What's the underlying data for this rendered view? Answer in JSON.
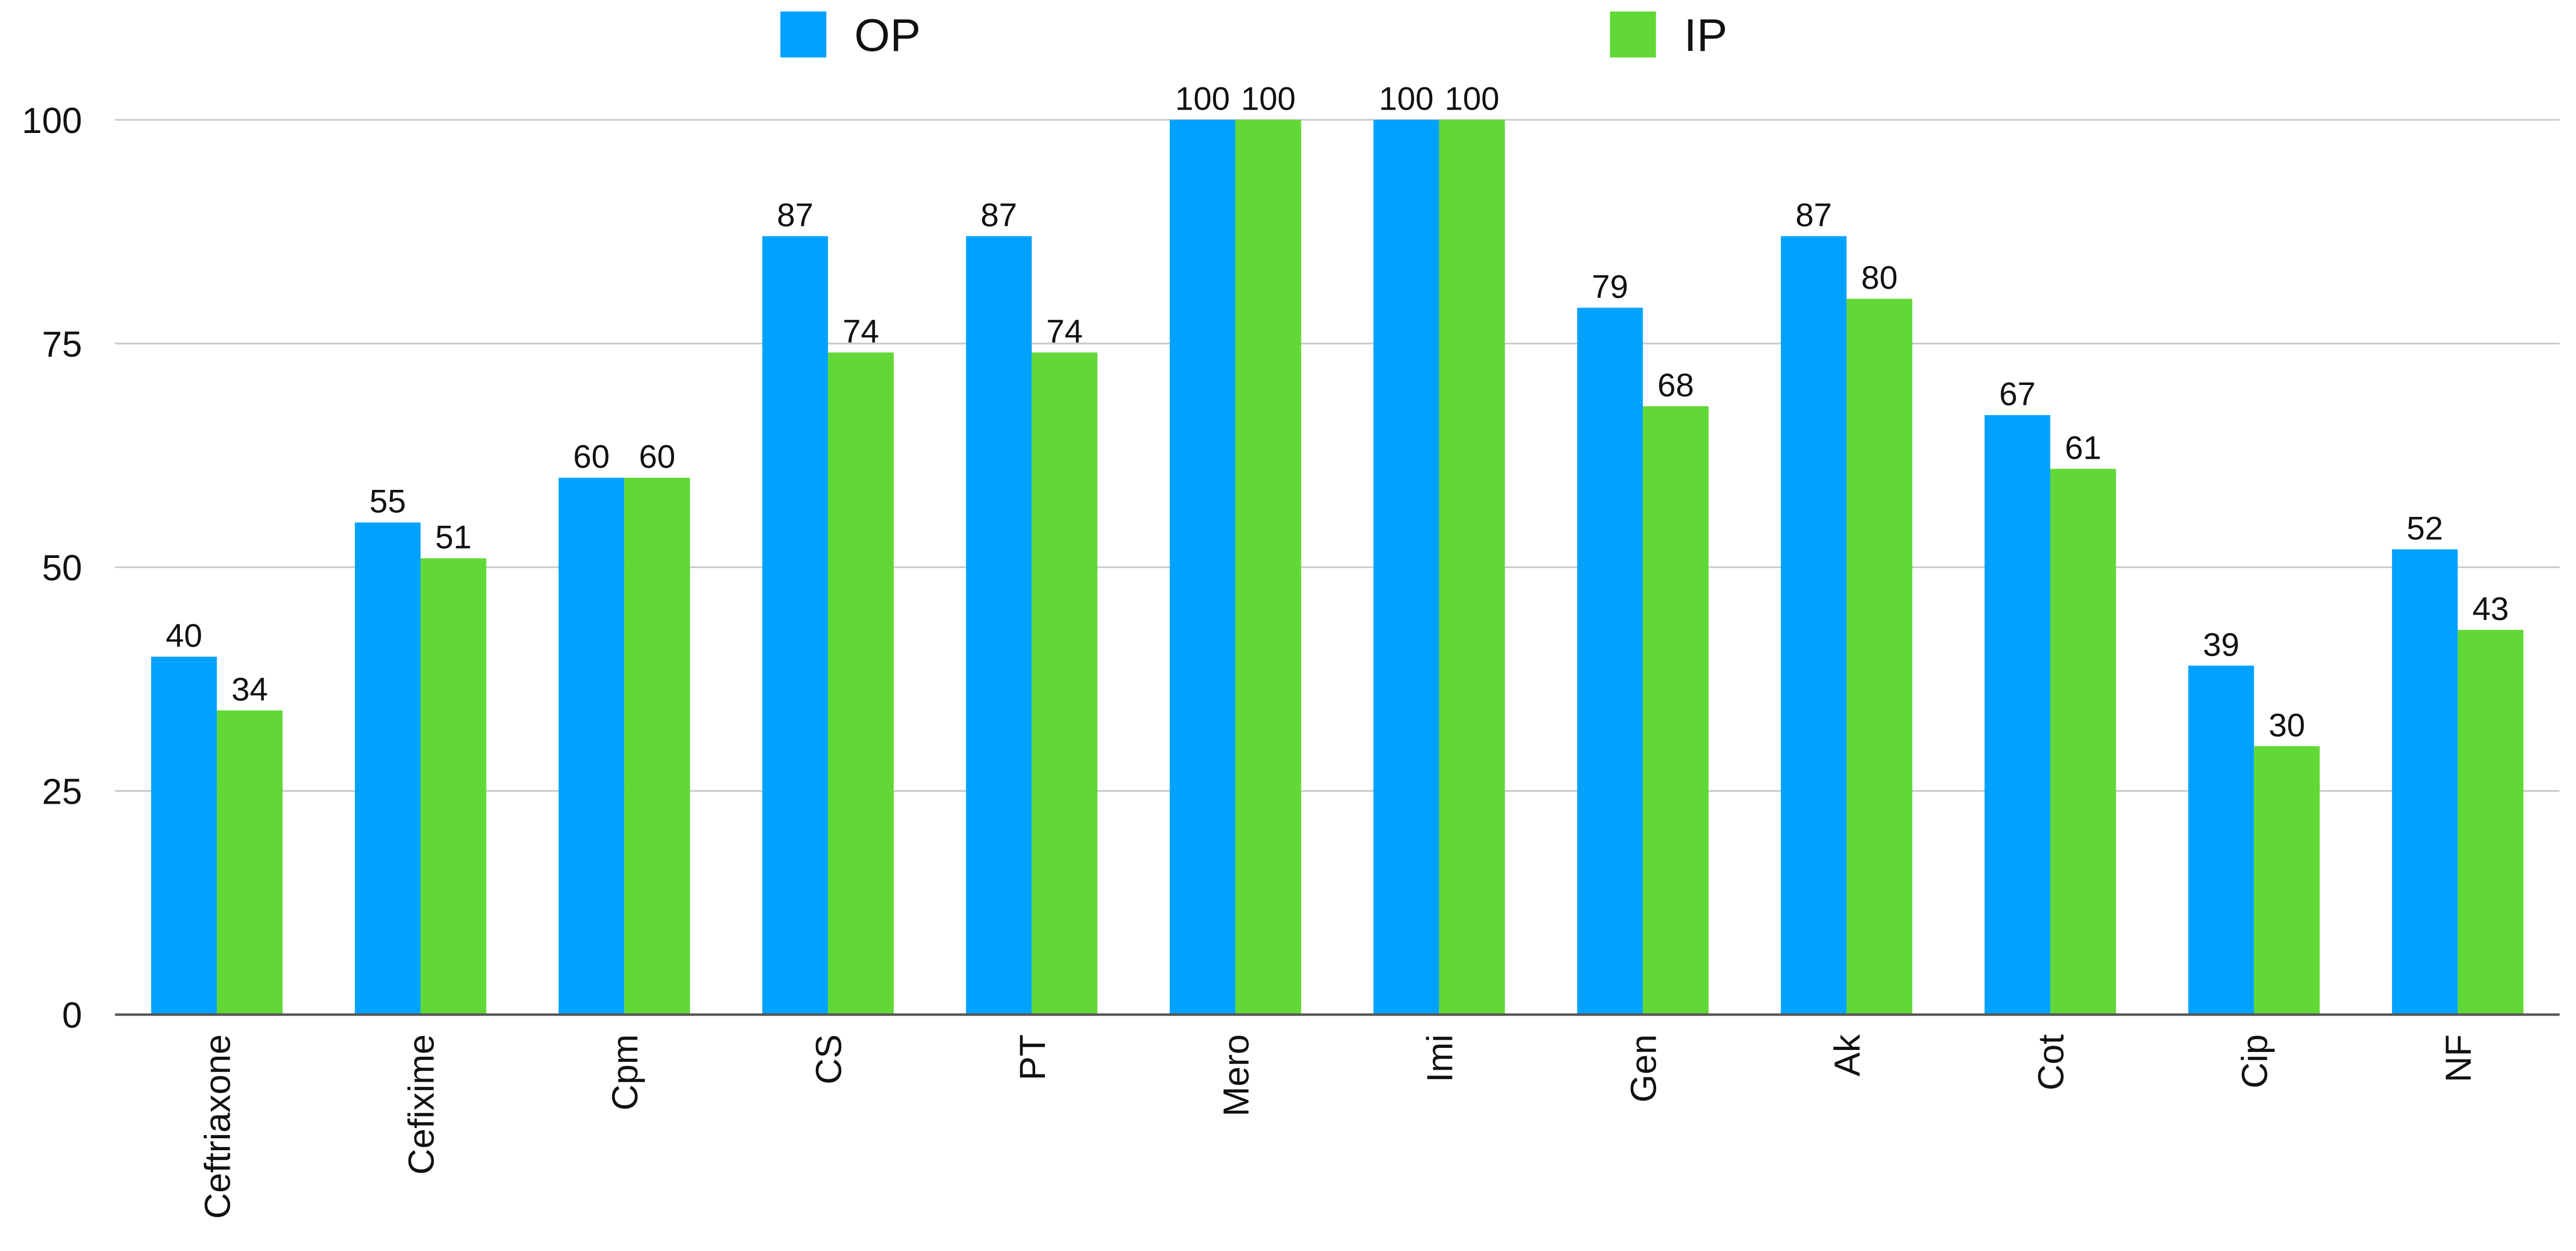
{
  "chart_data": {
    "type": "bar",
    "categories": [
      "Ceftriaxone",
      "Cefixime",
      "Cpm",
      "CS",
      "PT",
      "Mero",
      "Imi",
      "Gen",
      "Ak",
      "Cot",
      "Cip",
      "NF"
    ],
    "series": [
      {
        "name": "OP",
        "color": "#00a2ff",
        "values": [
          40,
          55,
          60,
          87,
          87,
          100,
          100,
          79,
          87,
          67,
          39,
          52
        ]
      },
      {
        "name": "IP",
        "color": "#61d836",
        "values": [
          34,
          51,
          60,
          74,
          74,
          100,
          100,
          68,
          80,
          61,
          30,
          43
        ]
      }
    ],
    "ylim": [
      0,
      100
    ],
    "yticks": [
      0,
      25,
      50,
      75,
      100
    ],
    "grid": true,
    "legend": "top"
  }
}
